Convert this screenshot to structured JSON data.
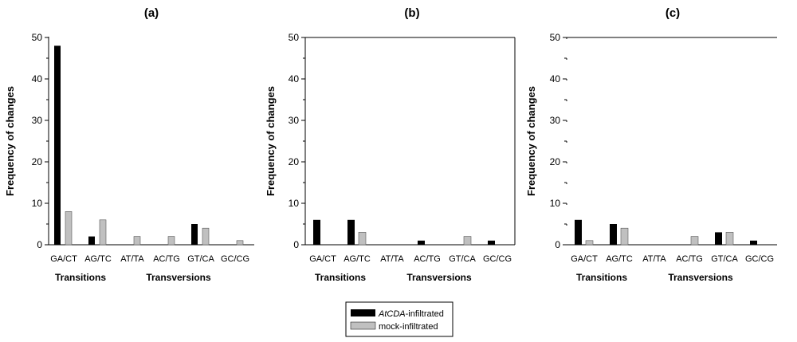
{
  "chart_data": [
    {
      "type": "bar",
      "title": "(a)",
      "xlabel": "",
      "ylabel": "Frequency of changes",
      "ylim": [
        0,
        50
      ],
      "yticks": [
        0,
        10,
        20,
        30,
        40,
        50
      ],
      "categories": [
        "GA/CT",
        "AG/TC",
        "AT/TA",
        "AC/TG",
        "GT/CA",
        "GC/CG"
      ],
      "group_labels": [
        "Transitions",
        "Transversions"
      ],
      "series": [
        {
          "name": "AtCDA-infiltrated",
          "values": [
            48,
            2,
            0,
            0,
            5,
            0
          ]
        },
        {
          "name": "mock-infiltrated",
          "values": [
            8,
            6,
            2,
            2,
            4,
            1
          ]
        }
      ]
    },
    {
      "type": "bar",
      "title": "(b)",
      "xlabel": "",
      "ylabel": "Frequency of changes",
      "ylim": [
        0,
        50
      ],
      "yticks": [
        0,
        10,
        20,
        30,
        40,
        50
      ],
      "categories": [
        "GA/CT",
        "AG/TC",
        "AT/TA",
        "AC/TG",
        "GT/CA",
        "GC/CG"
      ],
      "group_labels": [
        "Transitions",
        "Transversions"
      ],
      "series": [
        {
          "name": "AtCDA-infiltrated",
          "values": [
            6,
            6,
            0,
            1,
            0,
            1
          ]
        },
        {
          "name": "mock-infiltrated",
          "values": [
            0,
            3,
            0,
            0,
            2,
            0
          ]
        }
      ]
    },
    {
      "type": "bar",
      "title": "(c)",
      "xlabel": "",
      "ylabel": "Frequency of changes",
      "ylim": [
        0,
        50
      ],
      "yticks": [
        0,
        10,
        20,
        30,
        40,
        50
      ],
      "categories": [
        "GA/CT",
        "AG/TC",
        "AT/TA",
        "AC/TG",
        "GT/CA",
        "GC/CG"
      ],
      "group_labels": [
        "Transitions",
        "Transversions"
      ],
      "series": [
        {
          "name": "AtCDA-infiltrated",
          "values": [
            6,
            5,
            0,
            0,
            3,
            1
          ]
        },
        {
          "name": "mock-infiltrated",
          "values": [
            1,
            4,
            0,
            2,
            3,
            0
          ]
        }
      ]
    }
  ],
  "legend": {
    "position": "bottom-center",
    "entries": [
      {
        "prefix": "AtCDA",
        "suffix": "-infiltrated",
        "color": "#000000"
      },
      {
        "prefix": "",
        "suffix": "mock-infiltrated",
        "color": "#c0c0c0"
      }
    ]
  },
  "colors": {
    "series_0": "#000000",
    "series_1": "#c0c0c0",
    "axis": "#000000"
  }
}
